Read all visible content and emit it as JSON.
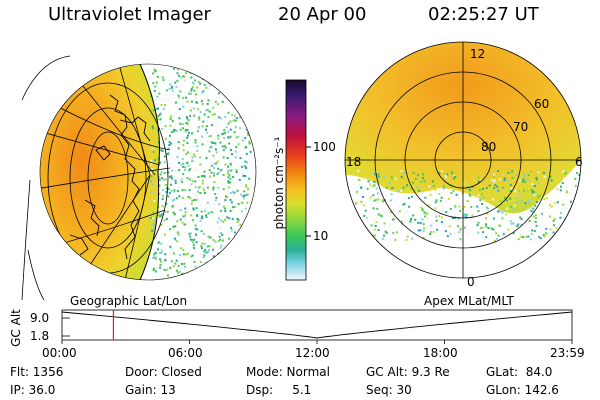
{
  "header": {
    "title": "Ultraviolet Imager",
    "date": "20 Apr 00",
    "time": "02:25:27 UT"
  },
  "colorbar": {
    "label": "photon cm⁻²s⁻¹",
    "tick_high": "100",
    "tick_low": "10",
    "colors": [
      "#2a0c3a",
      "#3b1a7a",
      "#7a1f8a",
      "#b0104a",
      "#e0301a",
      "#f07a10",
      "#f5b01a",
      "#e8d82a",
      "#c8e02a",
      "#8ed63a",
      "#4ec84a",
      "#2ab86a",
      "#2aa0a8",
      "#7fd0e0",
      "#e8f4f8"
    ]
  },
  "left_panel": {
    "caption": "Geographic Lat/Lon"
  },
  "right_panel": {
    "caption": "Apex MLat/MLT",
    "mlt_labels": [
      "12",
      "6",
      "0",
      "18"
    ],
    "lat_labels": [
      "60",
      "70",
      "80"
    ]
  },
  "timeline": {
    "ylabel": "GC Alt",
    "y_ticks": [
      "9.0",
      "1.8"
    ],
    "x_ticks": [
      "00:00",
      "06:00",
      "12:00",
      "18:00",
      "23:59"
    ],
    "marker_hour": 2.42
  },
  "status": {
    "flt": "Flt: 1356",
    "ip": "IP: 36.0",
    "door": "Door: Closed",
    "gain": "Gain: 13",
    "mode": "Mode: Normal",
    "dsp": "Dsp:     5.1",
    "gcalt": "GC Alt: 9.3 Re",
    "seq": "Seq: 30",
    "glat": "GLat:  84.0",
    "glon": "GLon: 142.6"
  }
}
